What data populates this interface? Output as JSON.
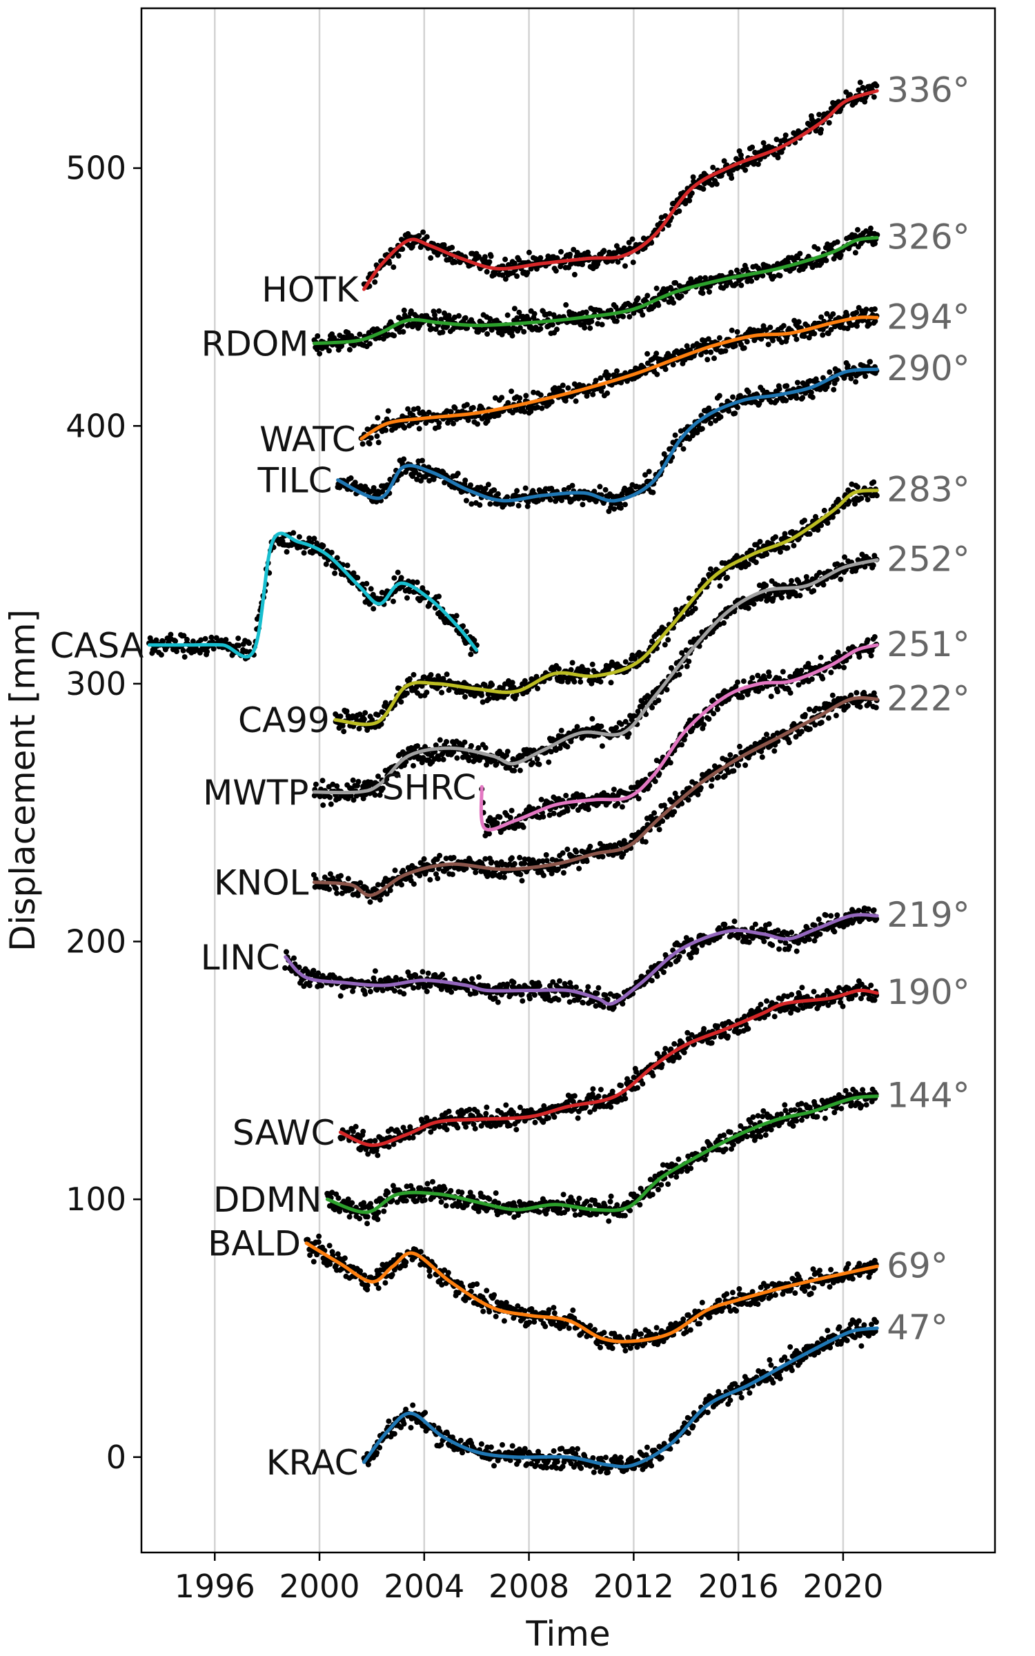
{
  "chart_data": {
    "type": "line",
    "title": "",
    "xlabel": "Time",
    "ylabel": "Displacement [mm]",
    "xlim": [
      1993.2,
      2025.8
    ],
    "ylim": [
      -37,
      562
    ],
    "x_ticks": [
      1996,
      2000,
      2004,
      2008,
      2012,
      2016,
      2020
    ],
    "x_tick_labels": [
      "1996",
      "2000",
      "2004",
      "2008",
      "2012",
      "2016",
      "2020"
    ],
    "y_ticks": [
      0,
      100,
      200,
      300,
      400,
      500
    ],
    "y_tick_labels": [
      "0",
      "100",
      "200",
      "300",
      "400",
      "500"
    ],
    "grid": "vertical",
    "legend": "none",
    "observations_color": "#000000",
    "series": [
      {
        "name": "HOTK",
        "azimuth": "336°",
        "color": "#d62728",
        "x": [
          2001.7,
          2002.4,
          2003.4,
          2004.2,
          2005.4,
          2006.8,
          2008.5,
          2010.3,
          2011.6,
          2012.8,
          2014.2,
          2015.8,
          2017.6,
          2019.2,
          2020.1,
          2021.3
        ],
        "y": [
          453,
          463,
          472,
          470,
          465,
          461,
          463,
          465,
          466,
          474,
          492,
          501,
          508,
          518,
          526,
          530
        ]
      },
      {
        "name": "RDOM",
        "azimuth": "326°",
        "color": "#2ca02c",
        "x": [
          1999.8,
          2001.4,
          2002.3,
          2003.4,
          2004.6,
          2006.0,
          2008.0,
          2010.0,
          2011.9,
          2013.6,
          2015.5,
          2017.5,
          2019.5,
          2020.5,
          2021.3
        ],
        "y": [
          432,
          433,
          436,
          441,
          440,
          439,
          440,
          442,
          445,
          452,
          457,
          461,
          467,
          472,
          473
        ]
      },
      {
        "name": "WATC",
        "azimuth": "294°",
        "color": "#ff7f0e",
        "x": [
          2001.6,
          2002.6,
          2004.0,
          2006.0,
          2008.0,
          2010.0,
          2012.0,
          2013.6,
          2015.0,
          2016.6,
          2018.0,
          2019.6,
          2020.6,
          2021.3
        ],
        "y": [
          395,
          401,
          403,
          405,
          409,
          414,
          420,
          426,
          431,
          435,
          436,
          440,
          442,
          442
        ]
      },
      {
        "name": "TILC",
        "azimuth": "290°",
        "color": "#1f77b4",
        "x": [
          2000.7,
          2002.3,
          2003.2,
          2004.3,
          2005.7,
          2007.0,
          2008.5,
          2010.1,
          2011.3,
          2012.7,
          2013.8,
          2014.8,
          2016.2,
          2017.5,
          2018.8,
          2020.1,
          2021.3
        ],
        "y": [
          379,
          372,
          384,
          382,
          375,
          371,
          373,
          374,
          371,
          378,
          395,
          404,
          410,
          412,
          415,
          421,
          422
        ]
      },
      {
        "name": "CASA",
        "azimuth": "",
        "color": "#17becf",
        "x": [
          1993.5,
          1995.0,
          1996.3,
          1997.5,
          1998.2,
          1999.2,
          2000.3,
          2001.5,
          2002.3,
          2003.1,
          2004.2,
          2005.3,
          2006.0
        ],
        "y": [
          315,
          315,
          315,
          313,
          355,
          355,
          350,
          338,
          331,
          339,
          333,
          322,
          313
        ]
      },
      {
        "name": "CA99",
        "azimuth": "283°",
        "color": "#bcbd22",
        "x": [
          2000.6,
          2002.2,
          2003.3,
          2004.5,
          2006.0,
          2007.5,
          2009.0,
          2010.5,
          2012.1,
          2013.4,
          2015.0,
          2016.5,
          2018.0,
          2019.6,
          2020.4,
          2021.3
        ],
        "y": [
          286,
          285,
          299,
          300,
          298,
          297,
          304,
          303,
          308,
          322,
          341,
          350,
          356,
          367,
          374,
          375
        ]
      },
      {
        "name": "MWTP",
        "azimuth": "252°",
        "color": "#a0a0a0",
        "x": [
          1999.8,
          2001.5,
          2002.3,
          2003.4,
          2005.0,
          2006.6,
          2007.4,
          2008.5,
          2010.0,
          2011.6,
          2012.8,
          2014.2,
          2015.6,
          2017.0,
          2018.6,
          2020.0,
          2021.3
        ],
        "y": [
          258,
          258,
          261,
          272,
          275,
          272,
          269,
          274,
          281,
          281,
          295,
          313,
          328,
          336,
          338,
          345,
          348
        ]
      },
      {
        "name": "SHRC",
        "azimuth": "251°",
        "color": "#e377c2",
        "x": [
          2006.2,
          2006.3,
          2007.5,
          2009.0,
          2010.5,
          2011.8,
          2012.8,
          2014.0,
          2015.5,
          2016.8,
          2018.0,
          2019.5,
          2020.5,
          2021.3
        ],
        "y": [
          260,
          244,
          247,
          253,
          255,
          256,
          265,
          282,
          295,
          300,
          301,
          307,
          313,
          315
        ]
      },
      {
        "name": "KNOL",
        "azimuth": "222°",
        "color": "#8c564b",
        "x": [
          1999.8,
          2001.2,
          2002.0,
          2003.3,
          2005.0,
          2007.0,
          2009.0,
          2010.5,
          2011.8,
          2013.0,
          2014.5,
          2016.0,
          2017.5,
          2019.0,
          2020.3,
          2021.3
        ],
        "y": [
          223,
          222,
          218,
          226,
          230,
          228,
          230,
          234,
          237,
          248,
          261,
          271,
          279,
          287,
          294,
          294
        ]
      },
      {
        "name": "LINC",
        "azimuth": "219°",
        "color": "#9467bd",
        "x": [
          1998.7,
          1999.5,
          2001.0,
          2002.5,
          2004.0,
          2005.6,
          2006.4,
          2008.0,
          2009.5,
          2010.6,
          2011.2,
          2012.3,
          2013.8,
          2015.6,
          2016.9,
          2017.9,
          2019.0,
          2020.3,
          2021.3
        ],
        "y": [
          194,
          186,
          184,
          183,
          185,
          183,
          181,
          181,
          181,
          178,
          176,
          184,
          197,
          204,
          203,
          201,
          205,
          210,
          210
        ]
      },
      {
        "name": "SAWC",
        "azimuth": "190°",
        "color": "#d62728",
        "x": [
          2000.8,
          2002.0,
          2003.3,
          2004.5,
          2006.0,
          2008.0,
          2009.5,
          2011.3,
          2012.8,
          2014.0,
          2015.5,
          2016.9,
          2017.8,
          2019.5,
          2020.6,
          2021.3
        ],
        "y": [
          126,
          121,
          125,
          130,
          131,
          132,
          136,
          140,
          152,
          160,
          166,
          172,
          176,
          178,
          181,
          180
        ]
      },
      {
        "name": "DDMN",
        "azimuth": "144°",
        "color": "#2ca02c",
        "x": [
          2000.3,
          2001.8,
          2003.0,
          2004.6,
          2006.0,
          2007.5,
          2009.0,
          2010.5,
          2011.8,
          2013.0,
          2014.5,
          2016.0,
          2017.5,
          2018.8,
          2020.3,
          2021.3
        ],
        "y": [
          100,
          95,
          102,
          102,
          99,
          96,
          98,
          96,
          97,
          108,
          117,
          125,
          131,
          134,
          139,
          140
        ]
      },
      {
        "name": "BALD",
        "azimuth": "69°",
        "color": "#ff7f0e",
        "x": [
          1999.5,
          2000.8,
          2002.0,
          2002.8,
          2003.6,
          2005.0,
          2006.6,
          2008.0,
          2009.5,
          2010.8,
          2012.0,
          2013.4,
          2014.8,
          2016.0,
          2017.8,
          2019.5,
          2021.3
        ],
        "y": [
          83,
          75,
          68,
          74,
          79,
          68,
          58,
          55,
          53,
          46,
          45,
          48,
          57,
          61,
          66,
          70,
          74
        ]
      },
      {
        "name": "KRAC",
        "azimuth": "47°",
        "color": "#1f77b4",
        "x": [
          2001.7,
          2002.6,
          2003.5,
          2004.7,
          2006.0,
          2007.5,
          2009.5,
          2011.0,
          2012.0,
          2013.4,
          2014.8,
          2016.4,
          2018.0,
          2019.5,
          2020.4,
          2021.3
        ],
        "y": [
          -2,
          10,
          17,
          8,
          2,
          0,
          0,
          -3,
          -3,
          5,
          20,
          28,
          37,
          45,
          49,
          50
        ]
      }
    ]
  }
}
